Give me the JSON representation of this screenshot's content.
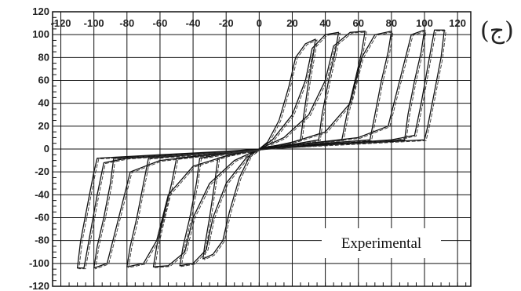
{
  "panel_label": "(ج)",
  "chart_data": {
    "type": "line",
    "legend": "Experimental",
    "xlim": [
      -125,
      128
    ],
    "ylim": [
      -120,
      120
    ],
    "x_ticks": [
      -120,
      -100,
      -80,
      -60,
      -40,
      -20,
      0,
      20,
      40,
      60,
      80,
      100,
      120
    ],
    "y_ticks": [
      -120,
      -100,
      -80,
      -60,
      -40,
      -20,
      0,
      20,
      40,
      60,
      80,
      100,
      120
    ],
    "x_tick_labels": [
      "-120",
      "-100",
      "-80",
      "-60",
      "-40",
      "-20",
      "0",
      "20",
      "40",
      "60",
      "80",
      "100",
      "120"
    ],
    "y_tick_labels": [
      "-120",
      "-100",
      "-80",
      "-60",
      "-40",
      "-20",
      "0",
      "20",
      "40",
      "60",
      "80",
      "100",
      "120"
    ],
    "grid": true,
    "x_axis_position": "top-inside",
    "series": [
      {
        "values": [
          [
            0,
            0
          ],
          [
            5,
            6
          ],
          [
            12,
            25
          ],
          [
            18,
            55
          ],
          [
            22,
            80
          ],
          [
            28,
            92
          ],
          [
            34,
            96
          ],
          [
            33,
            85
          ],
          [
            30,
            60
          ],
          [
            27,
            30
          ],
          [
            25,
            8
          ],
          [
            15,
            4
          ],
          [
            5,
            2
          ],
          [
            0,
            0
          ],
          [
            -5,
            -4
          ],
          [
            -12,
            -25
          ],
          [
            -18,
            -55
          ],
          [
            -22,
            -80
          ],
          [
            -28,
            -92
          ],
          [
            -34,
            -96
          ],
          [
            -33,
            -85
          ],
          [
            -30,
            -60
          ],
          [
            -27,
            -30
          ],
          [
            -25,
            -8
          ],
          [
            -15,
            -4
          ],
          [
            -5,
            -2
          ],
          [
            0,
            0
          ]
        ]
      },
      {
        "values": [
          [
            0,
            0
          ],
          [
            8,
            8
          ],
          [
            20,
            30
          ],
          [
            28,
            60
          ],
          [
            32,
            88
          ],
          [
            40,
            100
          ],
          [
            48,
            102
          ],
          [
            46,
            85
          ],
          [
            42,
            60
          ],
          [
            38,
            30
          ],
          [
            36,
            8
          ],
          [
            20,
            4
          ],
          [
            5,
            2
          ],
          [
            0,
            0
          ],
          [
            -8,
            -8
          ],
          [
            -20,
            -30
          ],
          [
            -28,
            -60
          ],
          [
            -32,
            -88
          ],
          [
            -40,
            -100
          ],
          [
            -48,
            -102
          ],
          [
            -46,
            -85
          ],
          [
            -42,
            -60
          ],
          [
            -38,
            -30
          ],
          [
            -36,
            -8
          ],
          [
            -20,
            -4
          ],
          [
            -5,
            -2
          ],
          [
            0,
            0
          ]
        ]
      },
      {
        "values": [
          [
            0,
            0
          ],
          [
            15,
            10
          ],
          [
            30,
            30
          ],
          [
            40,
            60
          ],
          [
            45,
            90
          ],
          [
            55,
            102
          ],
          [
            64,
            103
          ],
          [
            62,
            85
          ],
          [
            58,
            60
          ],
          [
            53,
            30
          ],
          [
            50,
            8
          ],
          [
            30,
            5
          ],
          [
            8,
            2
          ],
          [
            0,
            0
          ],
          [
            -15,
            -10
          ],
          [
            -30,
            -30
          ],
          [
            -40,
            -60
          ],
          [
            -45,
            -90
          ],
          [
            -55,
            -102
          ],
          [
            -64,
            -103
          ],
          [
            -62,
            -85
          ],
          [
            -58,
            -60
          ],
          [
            -53,
            -30
          ],
          [
            -50,
            -8
          ],
          [
            -30,
            -5
          ],
          [
            -8,
            -2
          ],
          [
            0,
            0
          ]
        ]
      },
      {
        "values": [
          [
            0,
            0
          ],
          [
            20,
            6
          ],
          [
            40,
            15
          ],
          [
            55,
            40
          ],
          [
            62,
            80
          ],
          [
            70,
            100
          ],
          [
            80,
            103
          ],
          [
            78,
            85
          ],
          [
            74,
            60
          ],
          [
            70,
            30
          ],
          [
            67,
            8
          ],
          [
            40,
            5
          ],
          [
            10,
            2
          ],
          [
            0,
            0
          ],
          [
            -20,
            -6
          ],
          [
            -40,
            -15
          ],
          [
            -55,
            -40
          ],
          [
            -62,
            -80
          ],
          [
            -70,
            -100
          ],
          [
            -80,
            -103
          ],
          [
            -78,
            -85
          ],
          [
            -74,
            -60
          ],
          [
            -70,
            -30
          ],
          [
            -67,
            -8
          ],
          [
            -40,
            -5
          ],
          [
            -10,
            -2
          ],
          [
            0,
            0
          ]
        ]
      },
      {
        "values": [
          [
            0,
            0
          ],
          [
            30,
            5
          ],
          [
            60,
            10
          ],
          [
            78,
            20
          ],
          [
            85,
            60
          ],
          [
            92,
            100
          ],
          [
            100,
            104
          ],
          [
            98,
            85
          ],
          [
            94,
            60
          ],
          [
            90,
            30
          ],
          [
            88,
            8
          ],
          [
            50,
            5
          ],
          [
            15,
            2
          ],
          [
            0,
            0
          ],
          [
            -30,
            -5
          ],
          [
            -60,
            -10
          ],
          [
            -78,
            -20
          ],
          [
            -85,
            -60
          ],
          [
            -92,
            -100
          ],
          [
            -100,
            -104
          ],
          [
            -98,
            -85
          ],
          [
            -94,
            -60
          ],
          [
            -90,
            -30
          ],
          [
            -88,
            -8
          ],
          [
            -50,
            -5
          ],
          [
            -15,
            -2
          ],
          [
            0,
            0
          ]
        ]
      },
      {
        "values": [
          [
            0,
            0
          ],
          [
            40,
            4
          ],
          [
            80,
            8
          ],
          [
            94,
            12
          ],
          [
            98,
            40
          ],
          [
            103,
            80
          ],
          [
            106,
            104
          ],
          [
            112,
            104
          ],
          [
            110,
            80
          ],
          [
            106,
            50
          ],
          [
            102,
            20
          ],
          [
            100,
            8
          ],
          [
            60,
            5
          ],
          [
            20,
            2
          ],
          [
            0,
            0
          ],
          [
            -40,
            -4
          ],
          [
            -80,
            -8
          ],
          [
            -94,
            -12
          ],
          [
            -98,
            -40
          ],
          [
            -103,
            -80
          ],
          [
            -106,
            -104
          ],
          [
            -110,
            -104
          ],
          [
            -108,
            -80
          ],
          [
            -104,
            -50
          ],
          [
            -100,
            -20
          ],
          [
            -98,
            -8
          ],
          [
            -60,
            -5
          ],
          [
            -20,
            -2
          ],
          [
            0,
            0
          ]
        ]
      }
    ]
  }
}
